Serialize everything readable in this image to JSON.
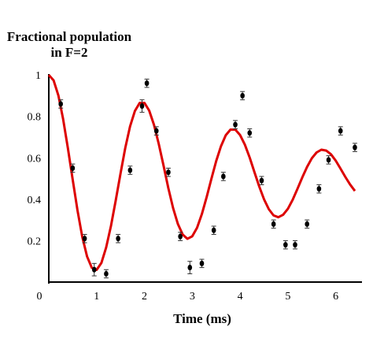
{
  "chart_data": {
    "type": "scatter",
    "title": "Fractional population",
    "subtitle": "in F=2",
    "xlabel": "Time (ms)",
    "ylabel": "",
    "xlim": [
      0,
      6.45
    ],
    "ylim": [
      0,
      1.05
    ],
    "x_ticks": [
      0,
      1,
      2,
      3,
      4,
      5,
      6
    ],
    "x_tick_labels": [
      "0",
      "1",
      "2",
      "3",
      "4",
      "5",
      "6"
    ],
    "y_ticks": [
      0.2,
      0.4,
      0.6,
      0.8,
      1.0
    ],
    "y_tick_labels": [
      "0.2",
      "0.4",
      "0.6",
      "0.8",
      "1"
    ],
    "grid": false,
    "colors": {
      "data": "#000000",
      "fit": "#dd0000",
      "axis": "#000000"
    },
    "series": [
      {
        "kind": "points_with_error_bars",
        "x": [
          0.25,
          0.5,
          0.75,
          0.95,
          1.2,
          1.45,
          1.7,
          1.95,
          2.05,
          2.25,
          2.5,
          2.75,
          2.95,
          3.2,
          3.45,
          3.65,
          3.9,
          4.05,
          4.2,
          4.45,
          4.7,
          4.95,
          5.15,
          5.4,
          5.65,
          5.85,
          6.1,
          6.4
        ],
        "y": [
          0.86,
          0.55,
          0.21,
          0.06,
          0.04,
          0.21,
          0.54,
          0.85,
          0.96,
          0.73,
          0.53,
          0.22,
          0.07,
          0.09,
          0.25,
          0.51,
          0.76,
          0.9,
          0.72,
          0.49,
          0.28,
          0.18,
          0.18,
          0.28,
          0.45,
          0.59,
          0.73,
          0.65
        ],
        "yerr": [
          0.02,
          0.02,
          0.02,
          0.03,
          0.02,
          0.02,
          0.02,
          0.03,
          0.02,
          0.02,
          0.02,
          0.02,
          0.03,
          0.02,
          0.02,
          0.02,
          0.02,
          0.02,
          0.02,
          0.02,
          0.02,
          0.02,
          0.02,
          0.02,
          0.02,
          0.02,
          0.02,
          0.02
        ]
      },
      {
        "kind": "fit_curve",
        "x": [
          0.0,
          0.1,
          0.2,
          0.3,
          0.4,
          0.5,
          0.6,
          0.7,
          0.8,
          0.9,
          1.0,
          1.1,
          1.2,
          1.3,
          1.4,
          1.5,
          1.6,
          1.7,
          1.8,
          1.9,
          2.0,
          2.1,
          2.2,
          2.3,
          2.4,
          2.5,
          2.6,
          2.7,
          2.8,
          2.9,
          3.0,
          3.1,
          3.2,
          3.3,
          3.4,
          3.5,
          3.6,
          3.7,
          3.8,
          3.9,
          4.0,
          4.1,
          4.2,
          4.3,
          4.4,
          4.5,
          4.6,
          4.7,
          4.8,
          4.9,
          5.0,
          5.1,
          5.2,
          5.3,
          5.4,
          5.5,
          5.6,
          5.7,
          5.8,
          5.9,
          6.0,
          6.1,
          6.2,
          6.3,
          6.4
        ],
        "y": [
          1.0,
          0.974,
          0.901,
          0.787,
          0.646,
          0.494,
          0.346,
          0.219,
          0.124,
          0.069,
          0.059,
          0.093,
          0.167,
          0.271,
          0.395,
          0.525,
          0.648,
          0.752,
          0.826,
          0.865,
          0.865,
          0.828,
          0.759,
          0.666,
          0.561,
          0.454,
          0.357,
          0.28,
          0.229,
          0.209,
          0.221,
          0.262,
          0.328,
          0.41,
          0.498,
          0.584,
          0.656,
          0.709,
          0.736,
          0.736,
          0.71,
          0.663,
          0.601,
          0.531,
          0.462,
          0.4,
          0.352,
          0.322,
          0.313,
          0.325,
          0.354,
          0.398,
          0.45,
          0.505,
          0.556,
          0.598,
          0.626,
          0.639,
          0.635,
          0.617,
          0.586,
          0.548,
          0.508,
          0.471,
          0.44
        ]
      }
    ]
  }
}
